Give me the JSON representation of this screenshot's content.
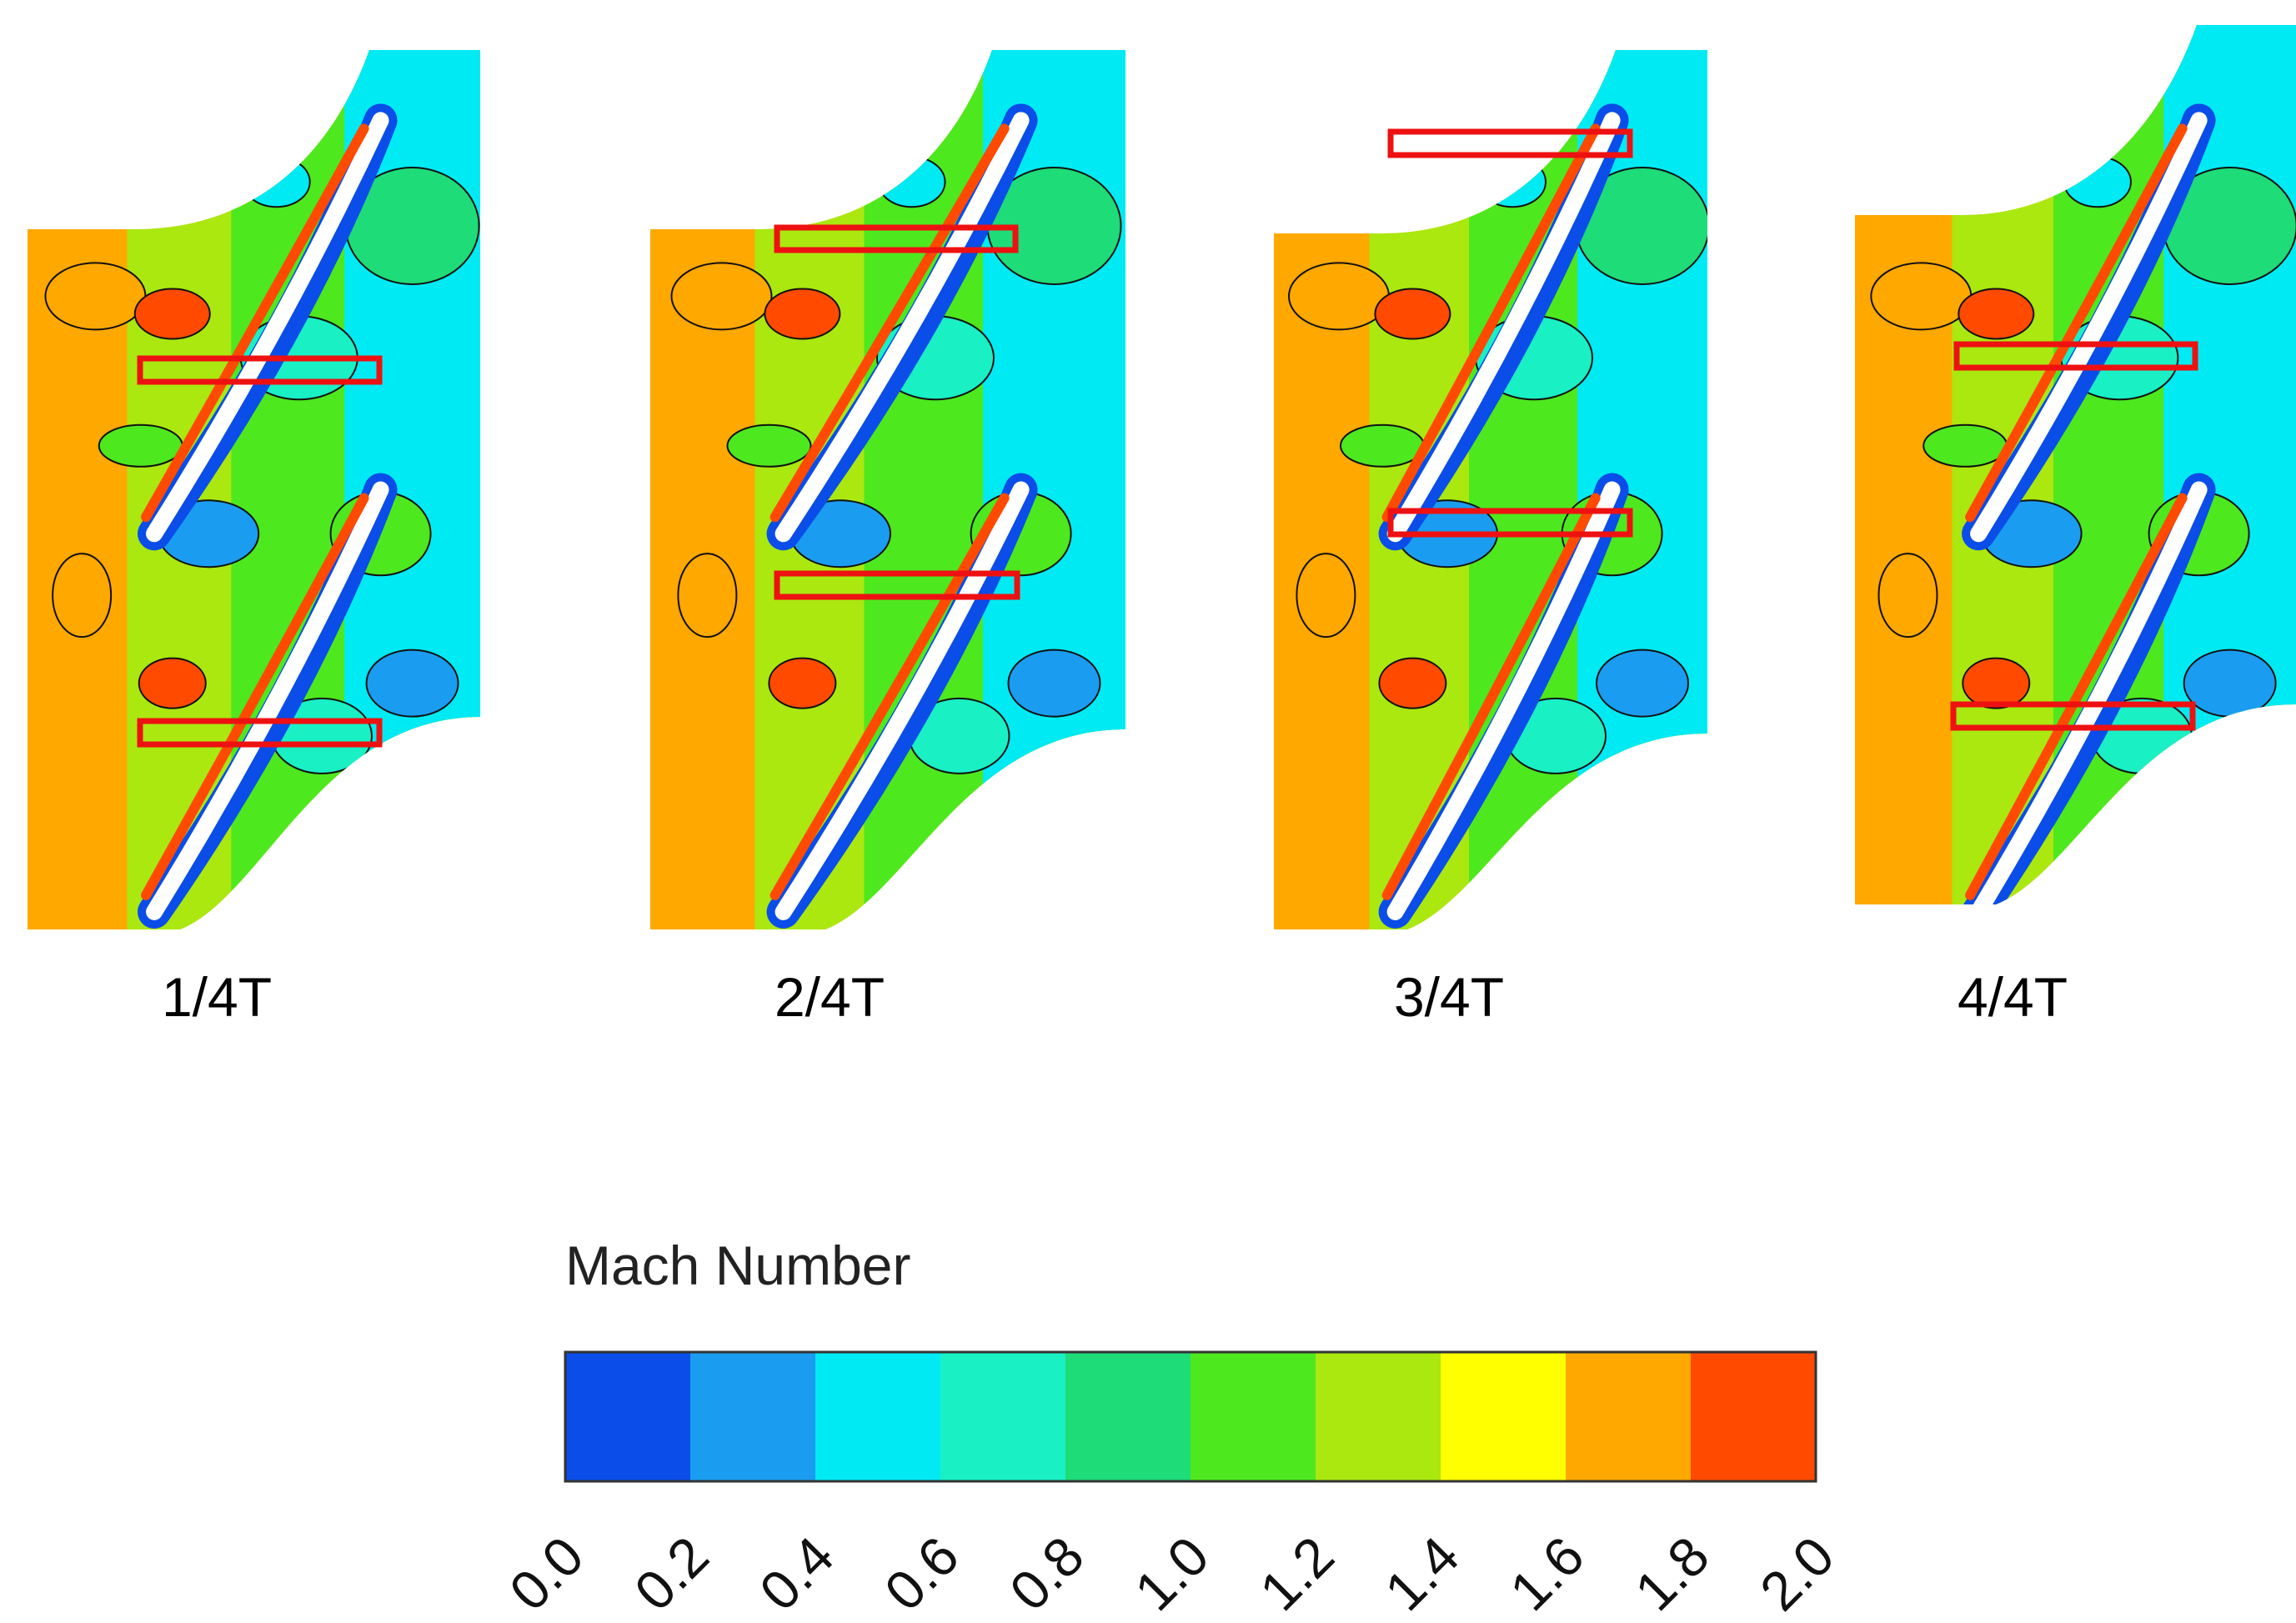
{
  "figure": {
    "snapshots": [
      {
        "label": "1/4T"
      },
      {
        "label": "2/4T"
      },
      {
        "label": "3/4T"
      },
      {
        "label": "4/4T"
      }
    ],
    "legend": {
      "title": "Mach Number",
      "ticks": [
        "0.0",
        "0.2",
        "0.4",
        "0.6",
        "0.8",
        "1.0",
        "1.2",
        "1.4",
        "1.6",
        "1.8",
        "2.0"
      ],
      "colors": [
        "#0a4de8",
        "#1a9df0",
        "#00eaf4",
        "#19f0c4",
        "#1edc78",
        "#4ee81e",
        "#aae810",
        "#ffff00",
        "#ffa800",
        "#ff4a00"
      ]
    },
    "highlight_color": "#ee1111",
    "blade_color": "#ffffff",
    "contour_line_color": "#111111"
  }
}
